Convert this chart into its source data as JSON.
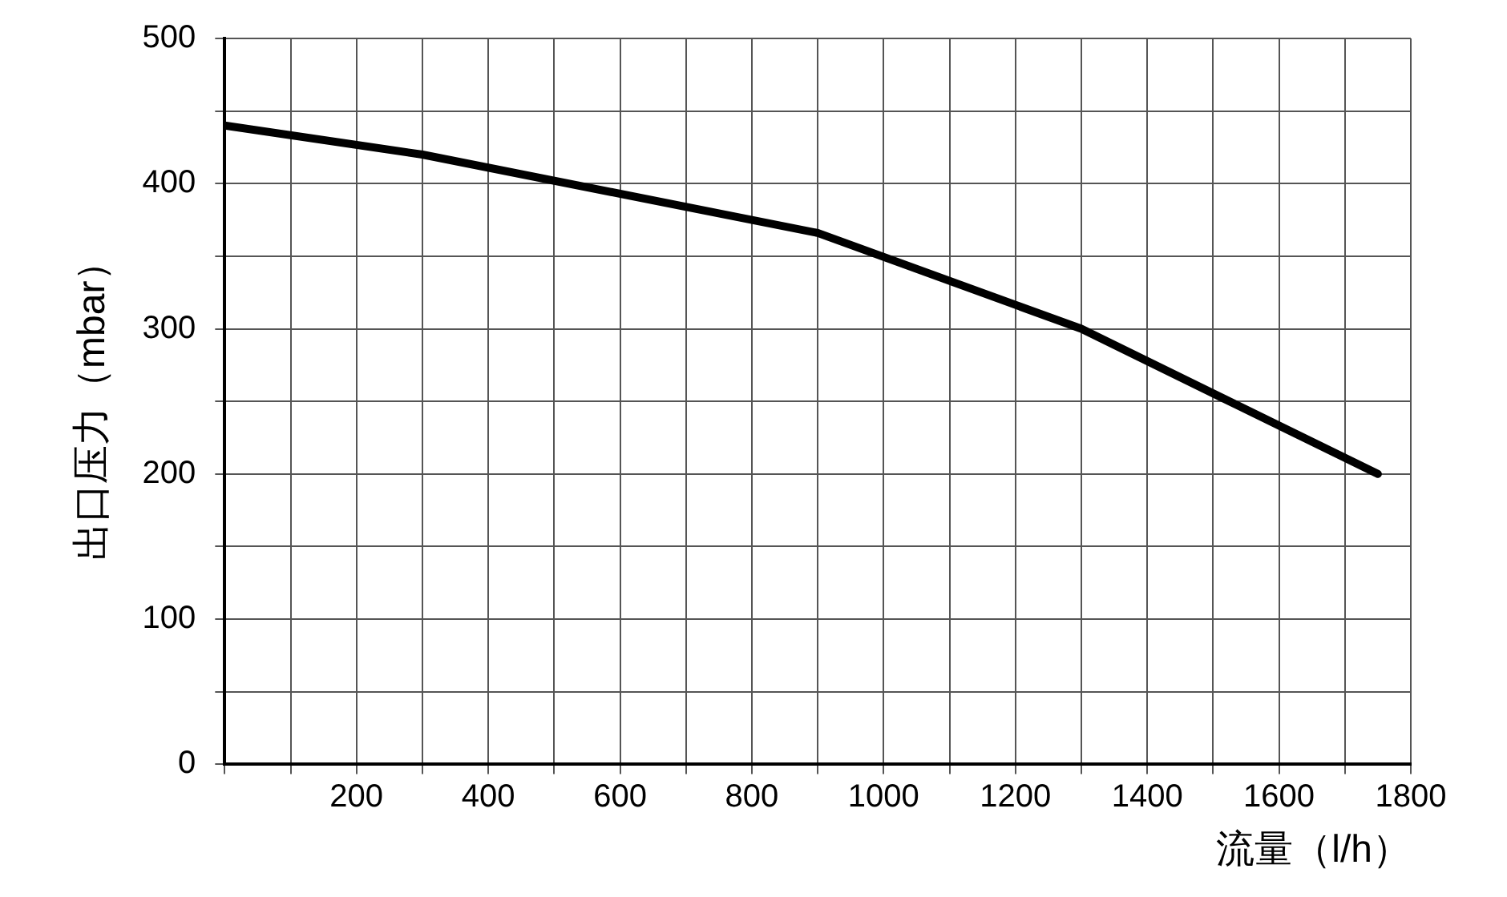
{
  "chart_data": {
    "type": "line",
    "xlabel": "流量（l/h）",
    "ylabel": "出口压力（mbar）",
    "x": [
      0,
      300,
      900,
      1300,
      1750
    ],
    "series": [
      {
        "color": "#000000",
        "values": [
          440,
          420,
          366,
          300,
          200
        ]
      }
    ],
    "xlim": [
      0,
      1800
    ],
    "xticks": [
      {
        "value": 0,
        "label": null
      },
      {
        "value": 100,
        "label": null
      },
      200,
      {
        "value": 300,
        "label": null
      },
      400,
      {
        "value": 500,
        "label": null
      },
      600,
      {
        "value": 700,
        "label": null
      },
      800,
      {
        "value": 900,
        "label": null
      },
      1000,
      {
        "value": 1100,
        "label": null
      },
      1200,
      {
        "value": 1300,
        "label": null
      },
      1400,
      {
        "value": 1500,
        "label": null
      },
      1600,
      {
        "value": 1700,
        "label": null
      },
      1800
    ],
    "ylim": [
      0,
      500
    ],
    "yticks": [
      0,
      {
        "value": 50,
        "label": null
      },
      100,
      {
        "value": 150,
        "label": null
      },
      200,
      {
        "value": 250,
        "label": null
      },
      300,
      {
        "value": 350,
        "label": null
      },
      400,
      {
        "value": 450,
        "label": null
      },
      500
    ],
    "grid": true,
    "legend": false,
    "marker": "none",
    "line_style": "solid"
  }
}
